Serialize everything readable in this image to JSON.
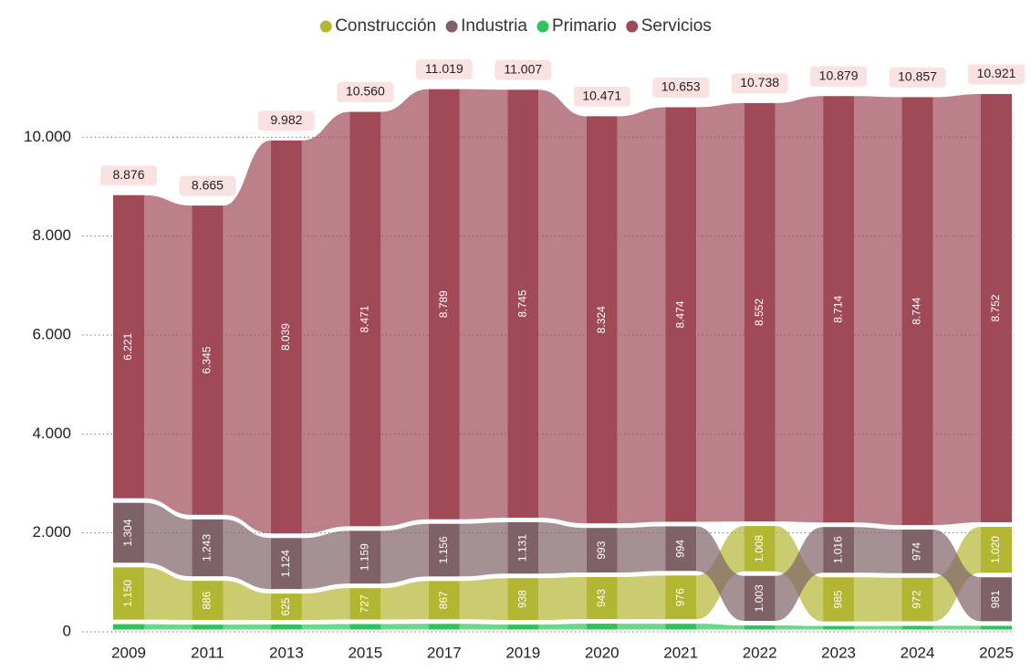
{
  "chart_data": {
    "type": "ribbon",
    "categories": [
      "2009",
      "2011",
      "2013",
      "2015",
      "2017",
      "2019",
      "2020",
      "2021",
      "2022",
      "2023",
      "2024",
      "2025"
    ],
    "series": [
      {
        "name": "Construcción",
        "color": "#b3b632",
        "values": [
          1150,
          886,
          625,
          727,
          867,
          938,
          943,
          976,
          1008,
          985,
          972,
          1020
        ],
        "value_labels": [
          "1.150",
          "886",
          "625",
          "727",
          "867",
          "938",
          "943",
          "976",
          "1.008",
          "985",
          "972",
          "1.020"
        ]
      },
      {
        "name": "Industria",
        "color": "#7f6268",
        "values": [
          1304,
          1243,
          1124,
          1159,
          1156,
          1131,
          993,
          994,
          1003,
          1016,
          974,
          981
        ],
        "value_labels": [
          "1.304",
          "1.243",
          "1.124",
          "1.159",
          "1.156",
          "1.131",
          "993",
          "994",
          "1.003",
          "1.016",
          "974",
          "981"
        ]
      },
      {
        "name": "Primario",
        "color": "#2ec45a",
        "values": [
          201,
          191,
          194,
          203,
          207,
          193,
          211,
          209,
          175,
          164,
          167,
          168
        ]
      },
      {
        "name": "Servicios",
        "color": "#a04a58",
        "values": [
          6221,
          6345,
          8039,
          8471,
          8789,
          8745,
          8324,
          8474,
          8552,
          8714,
          8744,
          8752
        ],
        "value_labels": [
          "6.221",
          "6.345",
          "8.039",
          "8.471",
          "8.789",
          "8.745",
          "8.324",
          "8.474",
          "8.552",
          "8.714",
          "8.744",
          "8.752"
        ]
      }
    ],
    "totals": {
      "values": [
        8876,
        8665,
        9982,
        10560,
        11019,
        11007,
        10471,
        10653,
        10738,
        10879,
        10857,
        10921
      ],
      "value_labels": [
        "8.876",
        "8.665",
        "9.982",
        "10.560",
        "11.019",
        "11.007",
        "10.471",
        "10.653",
        "10.738",
        "10.879",
        "10.857",
        "10.921"
      ]
    },
    "ylim": [
      0,
      12000
    ],
    "yticks": [
      0,
      {
        "value": 2000,
        "label": "2.000"
      },
      {
        "value": 4000,
        "label": "4.000"
      },
      {
        "value": 6000,
        "label": "6.000"
      },
      {
        "value": 8000,
        "label": "8.000"
      },
      {
        "value": 10000,
        "label": "10.000"
      }
    ],
    "grid": true,
    "legend": "top"
  }
}
